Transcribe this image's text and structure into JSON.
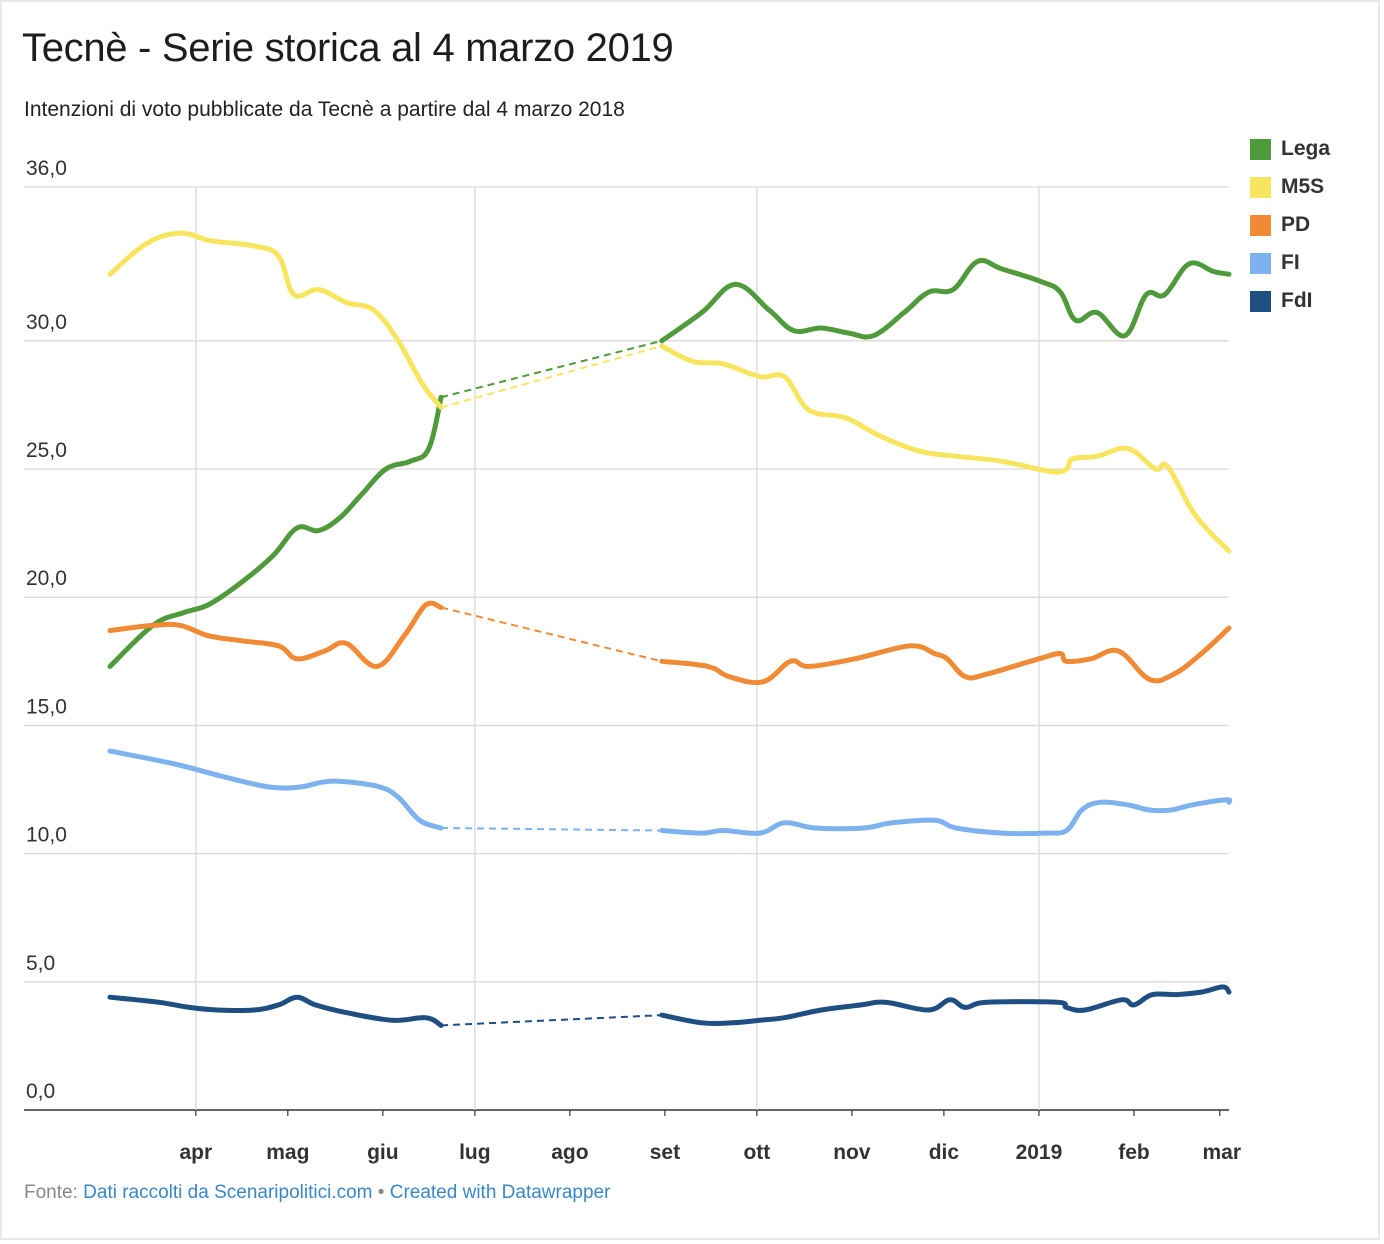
{
  "header": {
    "title": "Tecnè - Serie storica al 4 marzo 2019",
    "subtitle": "Intenzioni di voto pubblicate da Tecnè a partire dal 4 marzo 2018"
  },
  "footer": {
    "prefix": "Fonte:",
    "source_link": "Dati raccolti da Scenaripolitici.com",
    "separator": "•",
    "credit_link": "Created with Datawrapper"
  },
  "chart_data": {
    "type": "line",
    "title": "Tecnè - Serie storica al 4 marzo 2019",
    "subtitle": "Intenzioni di voto pubblicate da Tecnè a partire dal 4 marzo 2018",
    "xlabel": "",
    "ylabel": "",
    "x_range": [
      "2018-03-04",
      "2019-03-04"
    ],
    "ylim": [
      0,
      36
    ],
    "y_ticks": [
      0,
      5,
      10,
      15,
      20,
      25,
      30,
      36
    ],
    "y_tick_labels": [
      "0,0",
      "5,0",
      "10,0",
      "15,0",
      "20,0",
      "25,0",
      "30,0",
      "36,0"
    ],
    "x_ticks": [
      "2018-04-01",
      "2018-05-01",
      "2018-06-01",
      "2018-07-01",
      "2018-08-01",
      "2018-09-01",
      "2018-10-01",
      "2018-11-01",
      "2018-12-01",
      "2019-01-01",
      "2019-02-01",
      "2019-03-01"
    ],
    "x_tick_labels": [
      "apr",
      "mag",
      "giu",
      "lug",
      "ago",
      "set",
      "ott",
      "nov",
      "dic",
      "2019",
      "feb",
      "mar"
    ],
    "gridlines_x": [
      "2018-04-01",
      "2018-07-01",
      "2018-10-01",
      "2019-01-01"
    ],
    "grid": true,
    "legend_position": "top-right",
    "gap": [
      "2018-06-20",
      "2018-08-31"
    ],
    "series": [
      {
        "name": "Lega",
        "color": "#4f9a3a",
        "points": [
          [
            "2018-03-04",
            17.3
          ],
          [
            "2018-03-18",
            18.9
          ],
          [
            "2018-03-28",
            19.4
          ],
          [
            "2018-04-05",
            19.7
          ],
          [
            "2018-04-15",
            20.5
          ],
          [
            "2018-04-26",
            21.6
          ],
          [
            "2018-05-04",
            22.7
          ],
          [
            "2018-05-11",
            22.6
          ],
          [
            "2018-05-18",
            23.1
          ],
          [
            "2018-05-25",
            24.0
          ],
          [
            "2018-06-02",
            25.0
          ],
          [
            "2018-06-10",
            25.3
          ],
          [
            "2018-06-16",
            25.8
          ],
          [
            "2018-06-20",
            27.8
          ],
          [
            "2018-08-31",
            30.0
          ],
          [
            "2018-09-13",
            31.1
          ],
          [
            "2018-09-24",
            32.2
          ],
          [
            "2018-10-05",
            31.2
          ],
          [
            "2018-10-13",
            30.4
          ],
          [
            "2018-10-22",
            30.5
          ],
          [
            "2018-10-31",
            30.3
          ],
          [
            "2018-11-08",
            30.2
          ],
          [
            "2018-11-18",
            31.1
          ],
          [
            "2018-11-26",
            31.9
          ],
          [
            "2018-12-04",
            32.0
          ],
          [
            "2018-12-12",
            33.1
          ],
          [
            "2018-12-20",
            32.8
          ],
          [
            "2019-01-02",
            32.3
          ],
          [
            "2019-01-08",
            31.9
          ],
          [
            "2019-01-13",
            30.8
          ],
          [
            "2019-01-20",
            31.1
          ],
          [
            "2019-01-29",
            30.2
          ],
          [
            "2019-02-05",
            31.8
          ],
          [
            "2019-02-11",
            31.8
          ],
          [
            "2019-02-19",
            33.0
          ],
          [
            "2019-02-27",
            32.7
          ],
          [
            "2019-03-04",
            32.6
          ]
        ]
      },
      {
        "name": "M5S",
        "color": "#f8e55f",
        "points": [
          [
            "2018-03-04",
            32.6
          ],
          [
            "2018-03-16",
            33.8
          ],
          [
            "2018-03-27",
            34.2
          ],
          [
            "2018-04-06",
            33.9
          ],
          [
            "2018-04-20",
            33.7
          ],
          [
            "2018-04-28",
            33.3
          ],
          [
            "2018-05-03",
            31.8
          ],
          [
            "2018-05-11",
            32.0
          ],
          [
            "2018-05-20",
            31.5
          ],
          [
            "2018-05-29",
            31.2
          ],
          [
            "2018-06-06",
            30.0
          ],
          [
            "2018-06-14",
            28.3
          ],
          [
            "2018-06-20",
            27.4
          ],
          [
            "2018-08-31",
            29.8
          ],
          [
            "2018-09-10",
            29.2
          ],
          [
            "2018-09-20",
            29.1
          ],
          [
            "2018-10-02",
            28.6
          ],
          [
            "2018-10-10",
            28.6
          ],
          [
            "2018-10-18",
            27.3
          ],
          [
            "2018-10-30",
            27.0
          ],
          [
            "2018-11-10",
            26.3
          ],
          [
            "2018-11-23",
            25.7
          ],
          [
            "2018-12-05",
            25.5
          ],
          [
            "2018-12-20",
            25.3
          ],
          [
            "2019-01-05",
            24.9
          ],
          [
            "2019-01-10",
            25.0
          ],
          [
            "2019-01-12",
            25.4
          ],
          [
            "2019-01-20",
            25.5
          ],
          [
            "2019-01-30",
            25.8
          ],
          [
            "2019-02-08",
            25.0
          ],
          [
            "2019-02-12",
            25.1
          ],
          [
            "2019-02-21",
            23.2
          ],
          [
            "2019-03-04",
            21.8
          ]
        ]
      },
      {
        "name": "PD",
        "color": "#f08a35",
        "points": [
          [
            "2018-03-04",
            18.7
          ],
          [
            "2018-03-18",
            18.9
          ],
          [
            "2018-03-27",
            18.9
          ],
          [
            "2018-04-05",
            18.5
          ],
          [
            "2018-04-16",
            18.3
          ],
          [
            "2018-04-28",
            18.1
          ],
          [
            "2018-05-04",
            17.6
          ],
          [
            "2018-05-13",
            17.9
          ],
          [
            "2018-05-20",
            18.2
          ],
          [
            "2018-05-30",
            17.3
          ],
          [
            "2018-06-08",
            18.5
          ],
          [
            "2018-06-15",
            19.7
          ],
          [
            "2018-06-20",
            19.6
          ],
          [
            "2018-08-31",
            17.5
          ],
          [
            "2018-09-15",
            17.3
          ],
          [
            "2018-09-22",
            16.9
          ],
          [
            "2018-10-03",
            16.7
          ],
          [
            "2018-10-12",
            17.5
          ],
          [
            "2018-10-18",
            17.3
          ],
          [
            "2018-11-02",
            17.6
          ],
          [
            "2018-11-20",
            18.1
          ],
          [
            "2018-11-28",
            17.8
          ],
          [
            "2018-12-02",
            17.6
          ],
          [
            "2018-12-08",
            16.9
          ],
          [
            "2018-12-15",
            17.0
          ],
          [
            "2019-01-01",
            17.6
          ],
          [
            "2019-01-08",
            17.8
          ],
          [
            "2019-01-10",
            17.5
          ],
          [
            "2019-01-18",
            17.6
          ],
          [
            "2019-01-27",
            17.9
          ],
          [
            "2019-02-06",
            16.8
          ],
          [
            "2019-02-14",
            17.0
          ],
          [
            "2019-02-23",
            17.8
          ],
          [
            "2019-03-04",
            18.8
          ]
        ]
      },
      {
        "name": "FI",
        "color": "#7db2ee",
        "points": [
          [
            "2018-03-04",
            14.0
          ],
          [
            "2018-03-25",
            13.5
          ],
          [
            "2018-04-10",
            13.0
          ],
          [
            "2018-04-25",
            12.6
          ],
          [
            "2018-05-05",
            12.6
          ],
          [
            "2018-05-13",
            12.8
          ],
          [
            "2018-05-20",
            12.8
          ],
          [
            "2018-05-31",
            12.6
          ],
          [
            "2018-06-06",
            12.2
          ],
          [
            "2018-06-13",
            11.3
          ],
          [
            "2018-06-20",
            11.0
          ],
          [
            "2018-08-31",
            10.9
          ],
          [
            "2018-09-13",
            10.8
          ],
          [
            "2018-09-20",
            10.9
          ],
          [
            "2018-10-02",
            10.8
          ],
          [
            "2018-10-10",
            11.2
          ],
          [
            "2018-10-20",
            11.0
          ],
          [
            "2018-11-05",
            11.0
          ],
          [
            "2018-11-14",
            11.2
          ],
          [
            "2018-11-28",
            11.3
          ],
          [
            "2018-12-05",
            11.0
          ],
          [
            "2018-12-20",
            10.8
          ],
          [
            "2019-01-03",
            10.8
          ],
          [
            "2019-01-10",
            10.9
          ],
          [
            "2019-01-15",
            11.7
          ],
          [
            "2019-01-21",
            12.0
          ],
          [
            "2019-01-30",
            11.9
          ],
          [
            "2019-02-06",
            11.7
          ],
          [
            "2019-02-13",
            11.7
          ],
          [
            "2019-02-20",
            11.9
          ],
          [
            "2019-03-03",
            12.1
          ],
          [
            "2019-03-04",
            12.0
          ]
        ]
      },
      {
        "name": "FdI",
        "color": "#1e4e82",
        "points": [
          [
            "2018-03-04",
            4.4
          ],
          [
            "2018-03-20",
            4.2
          ],
          [
            "2018-03-30",
            4.0
          ],
          [
            "2018-04-08",
            3.9
          ],
          [
            "2018-04-20",
            3.9
          ],
          [
            "2018-04-28",
            4.1
          ],
          [
            "2018-05-04",
            4.4
          ],
          [
            "2018-05-10",
            4.1
          ],
          [
            "2018-05-20",
            3.8
          ],
          [
            "2018-06-04",
            3.5
          ],
          [
            "2018-06-15",
            3.6
          ],
          [
            "2018-06-20",
            3.3
          ],
          [
            "2018-08-31",
            3.7
          ],
          [
            "2018-09-13",
            3.4
          ],
          [
            "2018-09-23",
            3.4
          ],
          [
            "2018-10-02",
            3.5
          ],
          [
            "2018-10-10",
            3.6
          ],
          [
            "2018-10-22",
            3.9
          ],
          [
            "2018-11-04",
            4.1
          ],
          [
            "2018-11-12",
            4.2
          ],
          [
            "2018-11-26",
            3.9
          ],
          [
            "2018-12-03",
            4.3
          ],
          [
            "2018-12-08",
            4.0
          ],
          [
            "2018-12-15",
            4.2
          ],
          [
            "2019-01-07",
            4.2
          ],
          [
            "2019-01-10",
            4.0
          ],
          [
            "2019-01-16",
            3.9
          ],
          [
            "2019-01-28",
            4.3
          ],
          [
            "2019-02-01",
            4.1
          ],
          [
            "2019-02-07",
            4.5
          ],
          [
            "2019-02-15",
            4.5
          ],
          [
            "2019-02-23",
            4.6
          ],
          [
            "2019-03-02",
            4.8
          ],
          [
            "2019-03-04",
            4.6
          ]
        ]
      }
    ]
  }
}
